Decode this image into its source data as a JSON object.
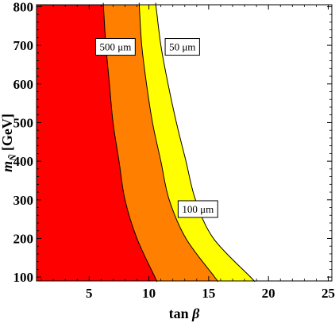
{
  "chart_data": {
    "type": "area",
    "title": "",
    "xlabel": "tan",
    "xlabel_symbol": "β",
    "ylabel_prefix": "m",
    "ylabel_sub": "Ñ",
    "ylabel_unit": "[GeV]",
    "xlim": [
      0.6,
      25.3
    ],
    "ylim": [
      90,
      805
    ],
    "x_ticks": [
      5,
      10,
      15,
      20,
      25
    ],
    "y_ticks": [
      100,
      200,
      300,
      400,
      500,
      600,
      700,
      800
    ],
    "grid": false,
    "colors": {
      "red": "#ff0000",
      "orange": "#ff8000",
      "yellow": "#ffff00",
      "white": "#ffffff"
    },
    "series": [
      {
        "label": "500 μm",
        "fill": "#ff0000",
        "y": [
          100,
          200,
          300,
          400,
          500,
          600,
          700,
          800
        ],
        "x": [
          10.5,
          9.0,
          8.0,
          7.5,
          7.0,
          6.7,
          6.4,
          6.2
        ]
      },
      {
        "label": "100 μm",
        "fill": "#ff8000",
        "y": [
          100,
          200,
          300,
          400,
          500,
          600,
          700,
          800
        ],
        "x": [
          15.5,
          13.1,
          11.7,
          11.0,
          10.3,
          9.8,
          9.4,
          9.2
        ]
      },
      {
        "label": "50 μm",
        "fill": "#ffff00",
        "y": [
          100,
          200,
          300,
          400,
          500,
          600,
          700,
          800
        ],
        "x": [
          18.5,
          15.4,
          13.9,
          13.1,
          12.3,
          11.6,
          11.0,
          10.6
        ]
      }
    ],
    "annotations": [
      {
        "text": "500 μm",
        "x": 7.2,
        "y": 695
      },
      {
        "text": "50 μm",
        "x": 12.8,
        "y": 695
      },
      {
        "text": "100 μm",
        "x": 14.1,
        "y": 275
      }
    ]
  }
}
